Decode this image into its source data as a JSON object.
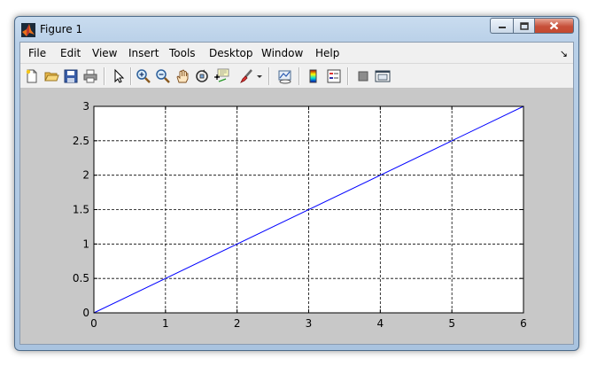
{
  "window": {
    "title": "Figure 1"
  },
  "menubar": {
    "items": [
      "File",
      "Edit",
      "View",
      "Insert",
      "Tools",
      "Desktop",
      "Window",
      "Help"
    ]
  },
  "toolbar": {
    "tools": [
      "new-figure-icon",
      "open-file-icon",
      "save-icon",
      "print-icon",
      "pointer-icon",
      "zoom-in-icon",
      "zoom-out-icon",
      "pan-hand-icon",
      "rotate-3d-icon",
      "data-cursor-icon",
      "brush-icon",
      "dropdown-arrow-icon",
      "link-plot-icon",
      "colorbar-icon",
      "legend-icon",
      "hide-plot-tools-icon",
      "show-plot-tools-icon"
    ]
  },
  "chart_data": {
    "type": "line",
    "series": [
      {
        "x": [
          0,
          6
        ],
        "y": [
          0,
          3
        ],
        "color": "#0000ff"
      }
    ],
    "xlim": [
      0,
      6
    ],
    "ylim": [
      0,
      3
    ],
    "xticks": [
      "0",
      "1",
      "2",
      "3",
      "4",
      "5",
      "6"
    ],
    "yticks": [
      "0",
      "0.5",
      "1",
      "1.5",
      "2",
      "2.5",
      "3"
    ],
    "grid": true,
    "title": "",
    "xlabel": "",
    "ylabel": ""
  }
}
